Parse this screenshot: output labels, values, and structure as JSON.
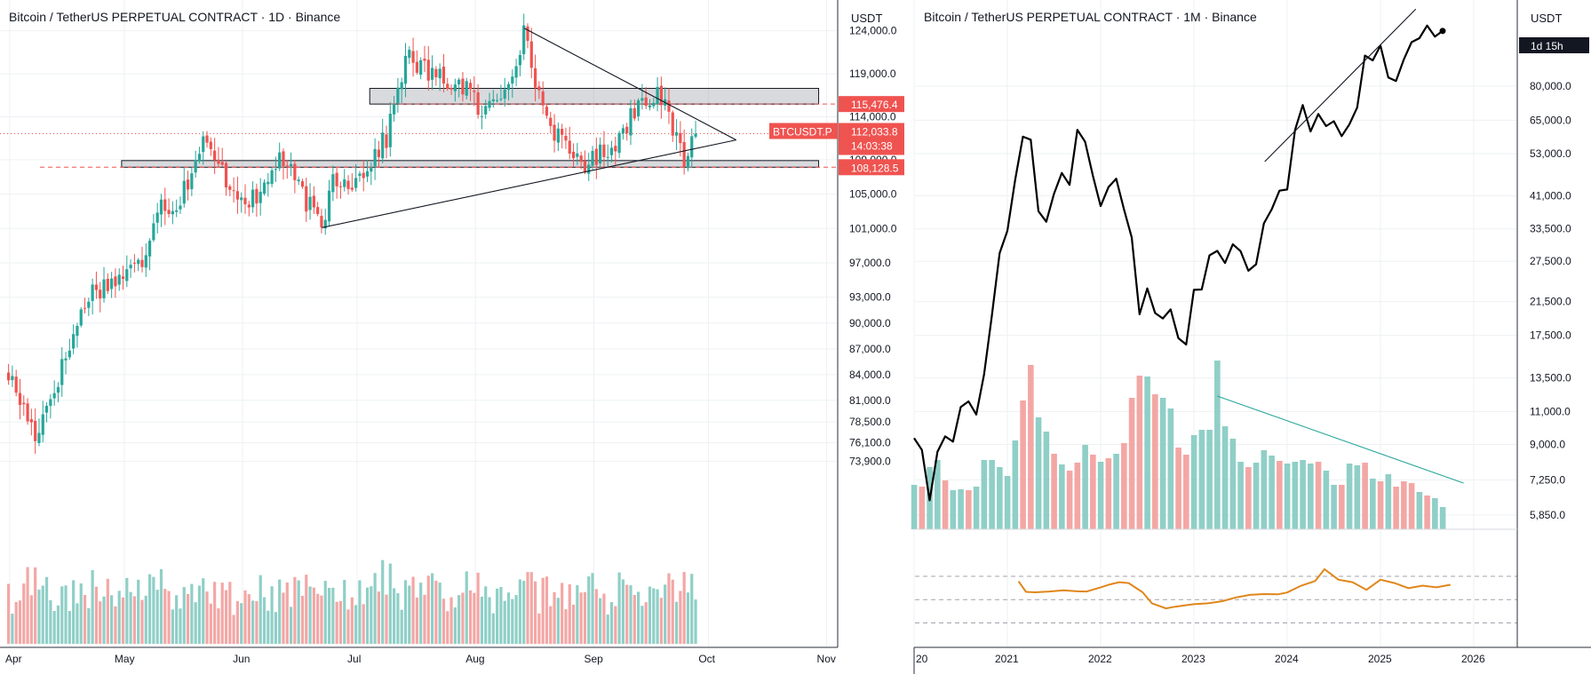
{
  "chart_data": [
    {
      "type": "candlestick",
      "title": "Bitcoin / TetherUS PERPETUAL CONTRACT · 1D · Binance",
      "currency": "USDT",
      "colors": {
        "up": "#26a69a",
        "down": "#ef5350",
        "volume_up": "#8fcfc7",
        "volume_down": "#f3a7a5"
      },
      "y_ticks": [
        "73,900.0",
        "76,100.0",
        "78,500.0",
        "81,000.0",
        "84,000.0",
        "87,000.0",
        "90,000.0",
        "93,000.0",
        "97,000.0",
        "101,000.0",
        "105,000.0",
        "109,000.0",
        "114,000.0",
        "119,000.0",
        "124,000.0"
      ],
      "x_ticks": [
        "Apr",
        "May",
        "Jun",
        "Jul",
        "Aug",
        "Sep",
        "Oct",
        "Nov"
      ],
      "price_path": [
        [
          "2025-04-01",
          84000
        ],
        [
          "2025-04-08",
          77000
        ],
        [
          "2025-04-15",
          84800
        ],
        [
          "2025-04-22",
          93500
        ],
        [
          "2025-04-29",
          95000
        ],
        [
          "2025-05-06",
          97000
        ],
        [
          "2025-05-10",
          104000
        ],
        [
          "2025-05-15",
          103500
        ],
        [
          "2025-05-22",
          111000
        ],
        [
          "2025-05-30",
          105500
        ],
        [
          "2025-06-05",
          104000
        ],
        [
          "2025-06-11",
          109500
        ],
        [
          "2025-06-17",
          105000
        ],
        [
          "2025-06-22",
          101000
        ],
        [
          "2025-06-25",
          107000
        ],
        [
          "2025-07-01",
          106500
        ],
        [
          "2025-07-09",
          111500
        ],
        [
          "2025-07-14",
          121000
        ],
        [
          "2025-07-22",
          118500
        ],
        [
          "2025-07-30",
          117500
        ],
        [
          "2025-08-03",
          114000
        ],
        [
          "2025-08-09",
          117500
        ],
        [
          "2025-08-14",
          123500
        ],
        [
          "2025-08-19",
          115000
        ],
        [
          "2025-08-25",
          110000
        ],
        [
          "2025-08-31",
          108500
        ],
        [
          "2025-09-08",
          111500
        ],
        [
          "2025-09-13",
          115800
        ],
        [
          "2025-09-18",
          117000
        ],
        [
          "2025-09-22",
          112500
        ],
        [
          "2025-09-25",
          109000
        ],
        [
          "2025-09-28",
          112000
        ]
      ],
      "price_labels": [
        {
          "value": "115,476.4",
          "price": 115476.4
        },
        {
          "symbol": "BTCUSDT.P",
          "value": "112,033.8",
          "countdown": "14:03:38",
          "price": 112033.8
        },
        {
          "value": "108,128.5",
          "price": 108128.5
        }
      ],
      "zones": [
        {
          "from": "2025-07-05",
          "to": "2025-11-01",
          "low": 115476.4,
          "high": 117300
        },
        {
          "from": "2025-05-01",
          "to": "2025-11-01",
          "low": 108128.5,
          "high": 108900
        }
      ],
      "trendlines": [
        {
          "from": [
            "2025-08-14",
            124300
          ],
          "to": [
            "2025-10-09",
            111300
          ]
        },
        {
          "from": [
            "2025-06-22",
            101100
          ],
          "to": [
            "2025-10-09",
            111300
          ]
        }
      ]
    },
    {
      "type": "line",
      "title": "Bitcoin / TetherUS PERPETUAL CONTRACT · 1M · Binance",
      "currency": "USDT",
      "countdown": "1d 15h",
      "y_scale": "log",
      "colors": {
        "price": "#000000",
        "volume_up": "#8fcfc7",
        "volume_down": "#f3a7a5",
        "indicator": "#e0861a",
        "trendline_volume": "#26a69a"
      },
      "y_ticks": [
        "5,850.0",
        "7,250.0",
        "9,000.0",
        "11,000.0",
        "13,500.0",
        "17,500.0",
        "21,500.0",
        "27,500.0",
        "33,500.0",
        "41,000.0",
        "53,000.0",
        "65,000.0",
        "80,000.0"
      ],
      "x_ticks": [
        "20",
        "2021",
        "2022",
        "2023",
        "2024",
        "2025",
        "2026"
      ],
      "price_path": [
        [
          "2020-01",
          9350
        ],
        [
          "2020-02",
          8700
        ],
        [
          "2020-03",
          6400
        ],
        [
          "2020-04",
          8600
        ],
        [
          "2020-05",
          9450
        ],
        [
          "2020-06",
          9150
        ],
        [
          "2020-07",
          11300
        ],
        [
          "2020-08",
          11700
        ],
        [
          "2020-09",
          10800
        ],
        [
          "2020-10",
          13800
        ],
        [
          "2020-11",
          19700
        ],
        [
          "2020-12",
          28900
        ],
        [
          "2021-01",
          33100
        ],
        [
          "2021-02",
          45200
        ],
        [
          "2021-03",
          58800
        ],
        [
          "2021-04",
          57700
        ],
        [
          "2021-05",
          37300
        ],
        [
          "2021-06",
          35000
        ],
        [
          "2021-07",
          41500
        ],
        [
          "2021-08",
          47100
        ],
        [
          "2021-09",
          43800
        ],
        [
          "2021-10",
          61300
        ],
        [
          "2021-11",
          57000
        ],
        [
          "2021-12",
          46300
        ],
        [
          "2022-01",
          38500
        ],
        [
          "2022-02",
          43200
        ],
        [
          "2022-03",
          45500
        ],
        [
          "2022-04",
          37700
        ],
        [
          "2022-05",
          31800
        ],
        [
          "2022-06",
          19900
        ],
        [
          "2022-07",
          23300
        ],
        [
          "2022-08",
          20050
        ],
        [
          "2022-09",
          19400
        ],
        [
          "2022-10",
          20500
        ],
        [
          "2022-11",
          17200
        ],
        [
          "2022-12",
          16550
        ],
        [
          "2023-01",
          23100
        ],
        [
          "2023-02",
          23150
        ],
        [
          "2023-03",
          28500
        ],
        [
          "2023-04",
          29300
        ],
        [
          "2023-05",
          27200
        ],
        [
          "2023-06",
          30500
        ],
        [
          "2023-07",
          29250
        ],
        [
          "2023-08",
          25950
        ],
        [
          "2023-09",
          27000
        ],
        [
          "2023-10",
          34650
        ],
        [
          "2023-11",
          37700
        ],
        [
          "2023-12",
          42300
        ],
        [
          "2024-01",
          42600
        ],
        [
          "2024-02",
          61200
        ],
        [
          "2024-03",
          71300
        ],
        [
          "2024-04",
          60700
        ],
        [
          "2024-05",
          67500
        ],
        [
          "2024-06",
          62700
        ],
        [
          "2024-07",
          64600
        ],
        [
          "2024-08",
          58980
        ],
        [
          "2024-09",
          63330
        ],
        [
          "2024-10",
          70250
        ],
        [
          "2024-11",
          96400
        ],
        [
          "2024-12",
          93580
        ],
        [
          "2025-01",
          102430
        ],
        [
          "2025-02",
          84350
        ],
        [
          "2025-03",
          82550
        ],
        [
          "2025-04",
          94170
        ],
        [
          "2025-05",
          104620
        ],
        [
          "2025-06",
          107160
        ],
        [
          "2025-07",
          115760
        ],
        [
          "2025-08",
          108250
        ],
        [
          "2025-09",
          112030
        ]
      ],
      "volume": [
        [
          50,
          1
        ],
        [
          48,
          0
        ],
        [
          70,
          1
        ],
        [
          78,
          1
        ],
        [
          55,
          0
        ],
        [
          44,
          1
        ],
        [
          45,
          1
        ],
        [
          44,
          0
        ],
        [
          48,
          1
        ],
        [
          78,
          1
        ],
        [
          78,
          1
        ],
        [
          70,
          1
        ],
        [
          60,
          1
        ],
        [
          100,
          1
        ],
        [
          145,
          0
        ],
        [
          185,
          0
        ],
        [
          126,
          1
        ],
        [
          110,
          1
        ],
        [
          85,
          0
        ],
        [
          73,
          1
        ],
        [
          66,
          0
        ],
        [
          75,
          0
        ],
        [
          95,
          1
        ],
        [
          84,
          0
        ],
        [
          76,
          1
        ],
        [
          80,
          0
        ],
        [
          85,
          1
        ],
        [
          97,
          0
        ],
        [
          148,
          0
        ],
        [
          173,
          0
        ],
        [
          172,
          1
        ],
        [
          152,
          0
        ],
        [
          148,
          1
        ],
        [
          136,
          1
        ],
        [
          92,
          0
        ],
        [
          84,
          0
        ],
        [
          106,
          1
        ],
        [
          112,
          1
        ],
        [
          112,
          1
        ],
        [
          190,
          1
        ],
        [
          116,
          1
        ],
        [
          102,
          1
        ],
        [
          76,
          1
        ],
        [
          70,
          0
        ],
        [
          75,
          1
        ],
        [
          89,
          1
        ],
        [
          83,
          1
        ],
        [
          77,
          0
        ],
        [
          74,
          1
        ],
        [
          76,
          1
        ],
        [
          78,
          1
        ],
        [
          74,
          1
        ],
        [
          76,
          0
        ],
        [
          66,
          1
        ],
        [
          50,
          1
        ],
        [
          50,
          0
        ],
        [
          74,
          1
        ],
        [
          72,
          1
        ],
        [
          75,
          0
        ],
        [
          57,
          1
        ],
        [
          54,
          0
        ],
        [
          62,
          1
        ],
        [
          48,
          0
        ],
        [
          54,
          0
        ],
        [
          52,
          0
        ],
        [
          42,
          1
        ],
        [
          38,
          0
        ],
        [
          35,
          1
        ],
        [
          25,
          1
        ]
      ],
      "indicator": [
        [
          2021.12,
          0.3
        ],
        [
          2021.2,
          0.92
        ],
        [
          2021.3,
          0.95
        ],
        [
          2021.45,
          0.9
        ],
        [
          2021.6,
          0.83
        ],
        [
          2021.75,
          0.89
        ],
        [
          2021.85,
          0.9
        ],
        [
          2022.0,
          0.65
        ],
        [
          2022.1,
          0.48
        ],
        [
          2022.2,
          0.35
        ],
        [
          2022.3,
          0.4
        ],
        [
          2022.45,
          0.95
        ],
        [
          2022.55,
          1.6
        ],
        [
          2022.7,
          1.9
        ],
        [
          2022.8,
          1.8
        ],
        [
          2022.9,
          1.72
        ],
        [
          2023.0,
          1.65
        ],
        [
          2023.15,
          1.6
        ],
        [
          2023.3,
          1.48
        ],
        [
          2023.45,
          1.25
        ],
        [
          2023.6,
          1.1
        ],
        [
          2023.75,
          1.05
        ],
        [
          2023.9,
          1.07
        ],
        [
          2024.0,
          0.96
        ],
        [
          2024.15,
          0.55
        ],
        [
          2024.3,
          0.28
        ],
        [
          2024.4,
          -0.42
        ],
        [
          2024.55,
          0.2
        ],
        [
          2024.7,
          0.35
        ],
        [
          2024.85,
          0.8
        ],
        [
          2025.0,
          0.2
        ],
        [
          2025.15,
          0.4
        ],
        [
          2025.3,
          0.7
        ],
        [
          2025.45,
          0.55
        ],
        [
          2025.6,
          0.65
        ],
        [
          2025.75,
          0.5
        ]
      ]
    }
  ]
}
